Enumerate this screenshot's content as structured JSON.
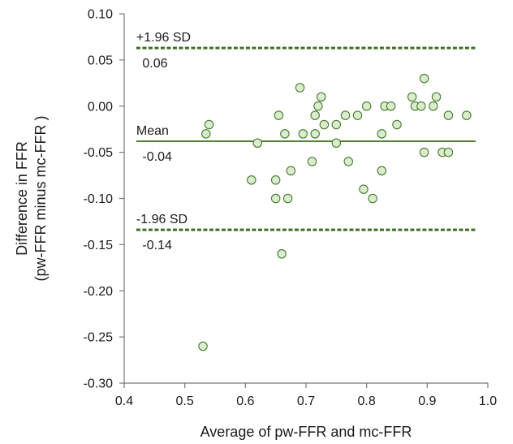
{
  "chart_data": {
    "type": "scatter",
    "title": "",
    "xlabel": "Average of pw-FFR and mc-FFR",
    "ylabel_lines": [
      "Difference in FFR",
      "(pw-FFR minus mc-FFR )"
    ],
    "xlim": [
      0.4,
      1.0
    ],
    "ylim": [
      -0.3,
      0.1
    ],
    "x_ticks": [
      "0.4",
      "0.5",
      "0.6",
      "0.7",
      "0.8",
      "0.9",
      "1.0"
    ],
    "y_ticks": [
      "0.10",
      "0.05",
      "0.00",
      "-0.05",
      "-0.10",
      "-0.15",
      "-0.20",
      "-0.25",
      "-0.30"
    ],
    "grid": false,
    "points": [
      {
        "x": 0.535,
        "y": -0.03
      },
      {
        "x": 0.54,
        "y": -0.02
      },
      {
        "x": 0.53,
        "y": -0.26
      },
      {
        "x": 0.61,
        "y": -0.08
      },
      {
        "x": 0.62,
        "y": -0.04
      },
      {
        "x": 0.65,
        "y": -0.08
      },
      {
        "x": 0.65,
        "y": -0.1
      },
      {
        "x": 0.655,
        "y": -0.01
      },
      {
        "x": 0.66,
        "y": -0.16
      },
      {
        "x": 0.665,
        "y": -0.03
      },
      {
        "x": 0.67,
        "y": -0.1
      },
      {
        "x": 0.675,
        "y": -0.07
      },
      {
        "x": 0.69,
        "y": 0.02
      },
      {
        "x": 0.695,
        "y": -0.03
      },
      {
        "x": 0.71,
        "y": -0.06
      },
      {
        "x": 0.715,
        "y": -0.03
      },
      {
        "x": 0.715,
        "y": -0.01
      },
      {
        "x": 0.72,
        "y": 0.0
      },
      {
        "x": 0.725,
        "y": 0.01
      },
      {
        "x": 0.73,
        "y": -0.02
      },
      {
        "x": 0.75,
        "y": -0.02
      },
      {
        "x": 0.75,
        "y": -0.04
      },
      {
        "x": 0.765,
        "y": -0.01
      },
      {
        "x": 0.77,
        "y": -0.06
      },
      {
        "x": 0.785,
        "y": -0.01
      },
      {
        "x": 0.795,
        "y": -0.09
      },
      {
        "x": 0.8,
        "y": 0.0
      },
      {
        "x": 0.81,
        "y": -0.1
      },
      {
        "x": 0.825,
        "y": -0.03
      },
      {
        "x": 0.825,
        "y": -0.07
      },
      {
        "x": 0.83,
        "y": 0.0
      },
      {
        "x": 0.84,
        "y": 0.0
      },
      {
        "x": 0.85,
        "y": -0.02
      },
      {
        "x": 0.875,
        "y": 0.01
      },
      {
        "x": 0.88,
        "y": 0.0
      },
      {
        "x": 0.89,
        "y": 0.0
      },
      {
        "x": 0.895,
        "y": 0.03
      },
      {
        "x": 0.895,
        "y": -0.05
      },
      {
        "x": 0.91,
        "y": 0.0
      },
      {
        "x": 0.915,
        "y": 0.01
      },
      {
        "x": 0.925,
        "y": -0.05
      },
      {
        "x": 0.935,
        "y": -0.05
      },
      {
        "x": 0.935,
        "y": -0.01
      },
      {
        "x": 0.965,
        "y": -0.01
      }
    ],
    "reference_lines": [
      {
        "name": "upper_loa",
        "label": "+1.96 SD",
        "value_label": "0.06",
        "y": 0.063,
        "style": "dashed"
      },
      {
        "name": "mean",
        "label": "Mean",
        "value_label": "-0.04",
        "y": -0.038,
        "style": "solid"
      },
      {
        "name": "lower_loa",
        "label": "-1.96 SD",
        "value_label": "-0.14",
        "y": -0.134,
        "style": "dashed"
      }
    ],
    "reference_line_x_range": [
      0.42,
      0.98
    ],
    "colors": {
      "point_fill": "#d9eccd",
      "point_stroke": "#4a7a2e",
      "reference_line": "#3c6e21",
      "axis": "#777777"
    }
  }
}
